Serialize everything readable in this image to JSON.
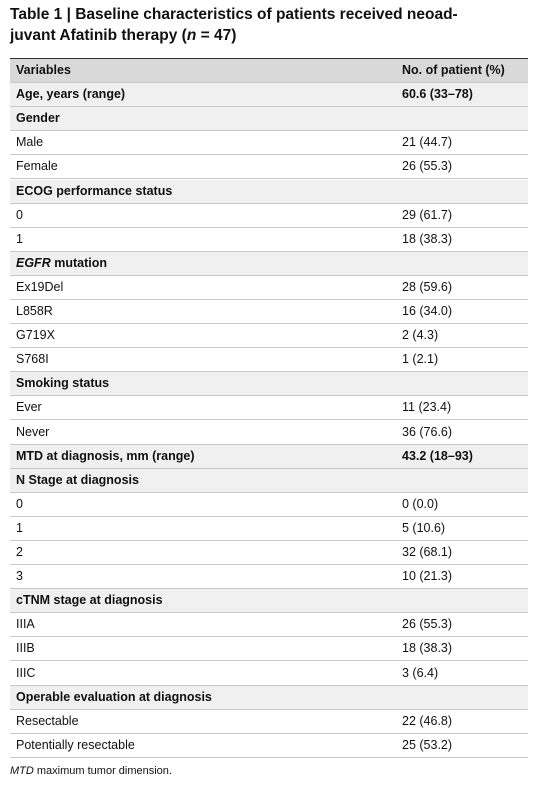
{
  "title": [
    "Table 1 | Baseline characteristics of patients received neoad-",
    "juvant Afatinib therapy (",
    "n",
    " = 47)"
  ],
  "table": {
    "header": [
      "Variables",
      "No. of patient (%)"
    ],
    "rows": [
      {
        "label": "Age, years (range)",
        "value": "60.6 (33–78)",
        "bold": true
      },
      {
        "label": "Gender",
        "bold": true
      },
      {
        "label": "Male",
        "value": "21 (44.7)"
      },
      {
        "label": "Female",
        "value": "26 (55.3)"
      },
      {
        "label": "ECOG performance status",
        "bold": true
      },
      {
        "label": "0",
        "value": "29 (61.7)"
      },
      {
        "label": "1",
        "value": "18 (38.3)"
      },
      {
        "label_italic": "EGFR",
        "label": " mutation",
        "bold": true
      },
      {
        "label": "Ex19Del",
        "value": "28 (59.6)"
      },
      {
        "label": "L858R",
        "value": "16 (34.0)"
      },
      {
        "label": "G719X",
        "value": "2 (4.3)"
      },
      {
        "label": "S768I",
        "value": "1 (2.1)"
      },
      {
        "label": "Smoking status",
        "bold": true
      },
      {
        "label": "Ever",
        "value": "11 (23.4)"
      },
      {
        "label": "Never",
        "value": "36 (76.6)"
      },
      {
        "label": "MTD at diagnosis, mm (range)",
        "value": "43.2 (18–93)",
        "bold": true
      },
      {
        "label": "N Stage at diagnosis",
        "bold": true
      },
      {
        "label": "0",
        "value": "0 (0.0)"
      },
      {
        "label": "1",
        "value": "5 (10.6)"
      },
      {
        "label": "2",
        "value": "32 (68.1)"
      },
      {
        "label": "3",
        "value": "10 (21.3)"
      },
      {
        "label": "cTNM stage at diagnosis",
        "bold": true
      },
      {
        "label": "IIIA",
        "value": "26 (55.3)"
      },
      {
        "label": "IIIB",
        "value": "18 (38.3)"
      },
      {
        "label": "IIIC",
        "value": "3 (6.4)"
      },
      {
        "label": "Operable evaluation at diagnosis",
        "bold": true
      },
      {
        "label": "Resectable",
        "value": "22 (46.8)"
      },
      {
        "label": "Potentially resectable",
        "value": "25 (53.2)"
      }
    ]
  },
  "footnote": [
    "MTD",
    " maximum tumor dimension."
  ]
}
